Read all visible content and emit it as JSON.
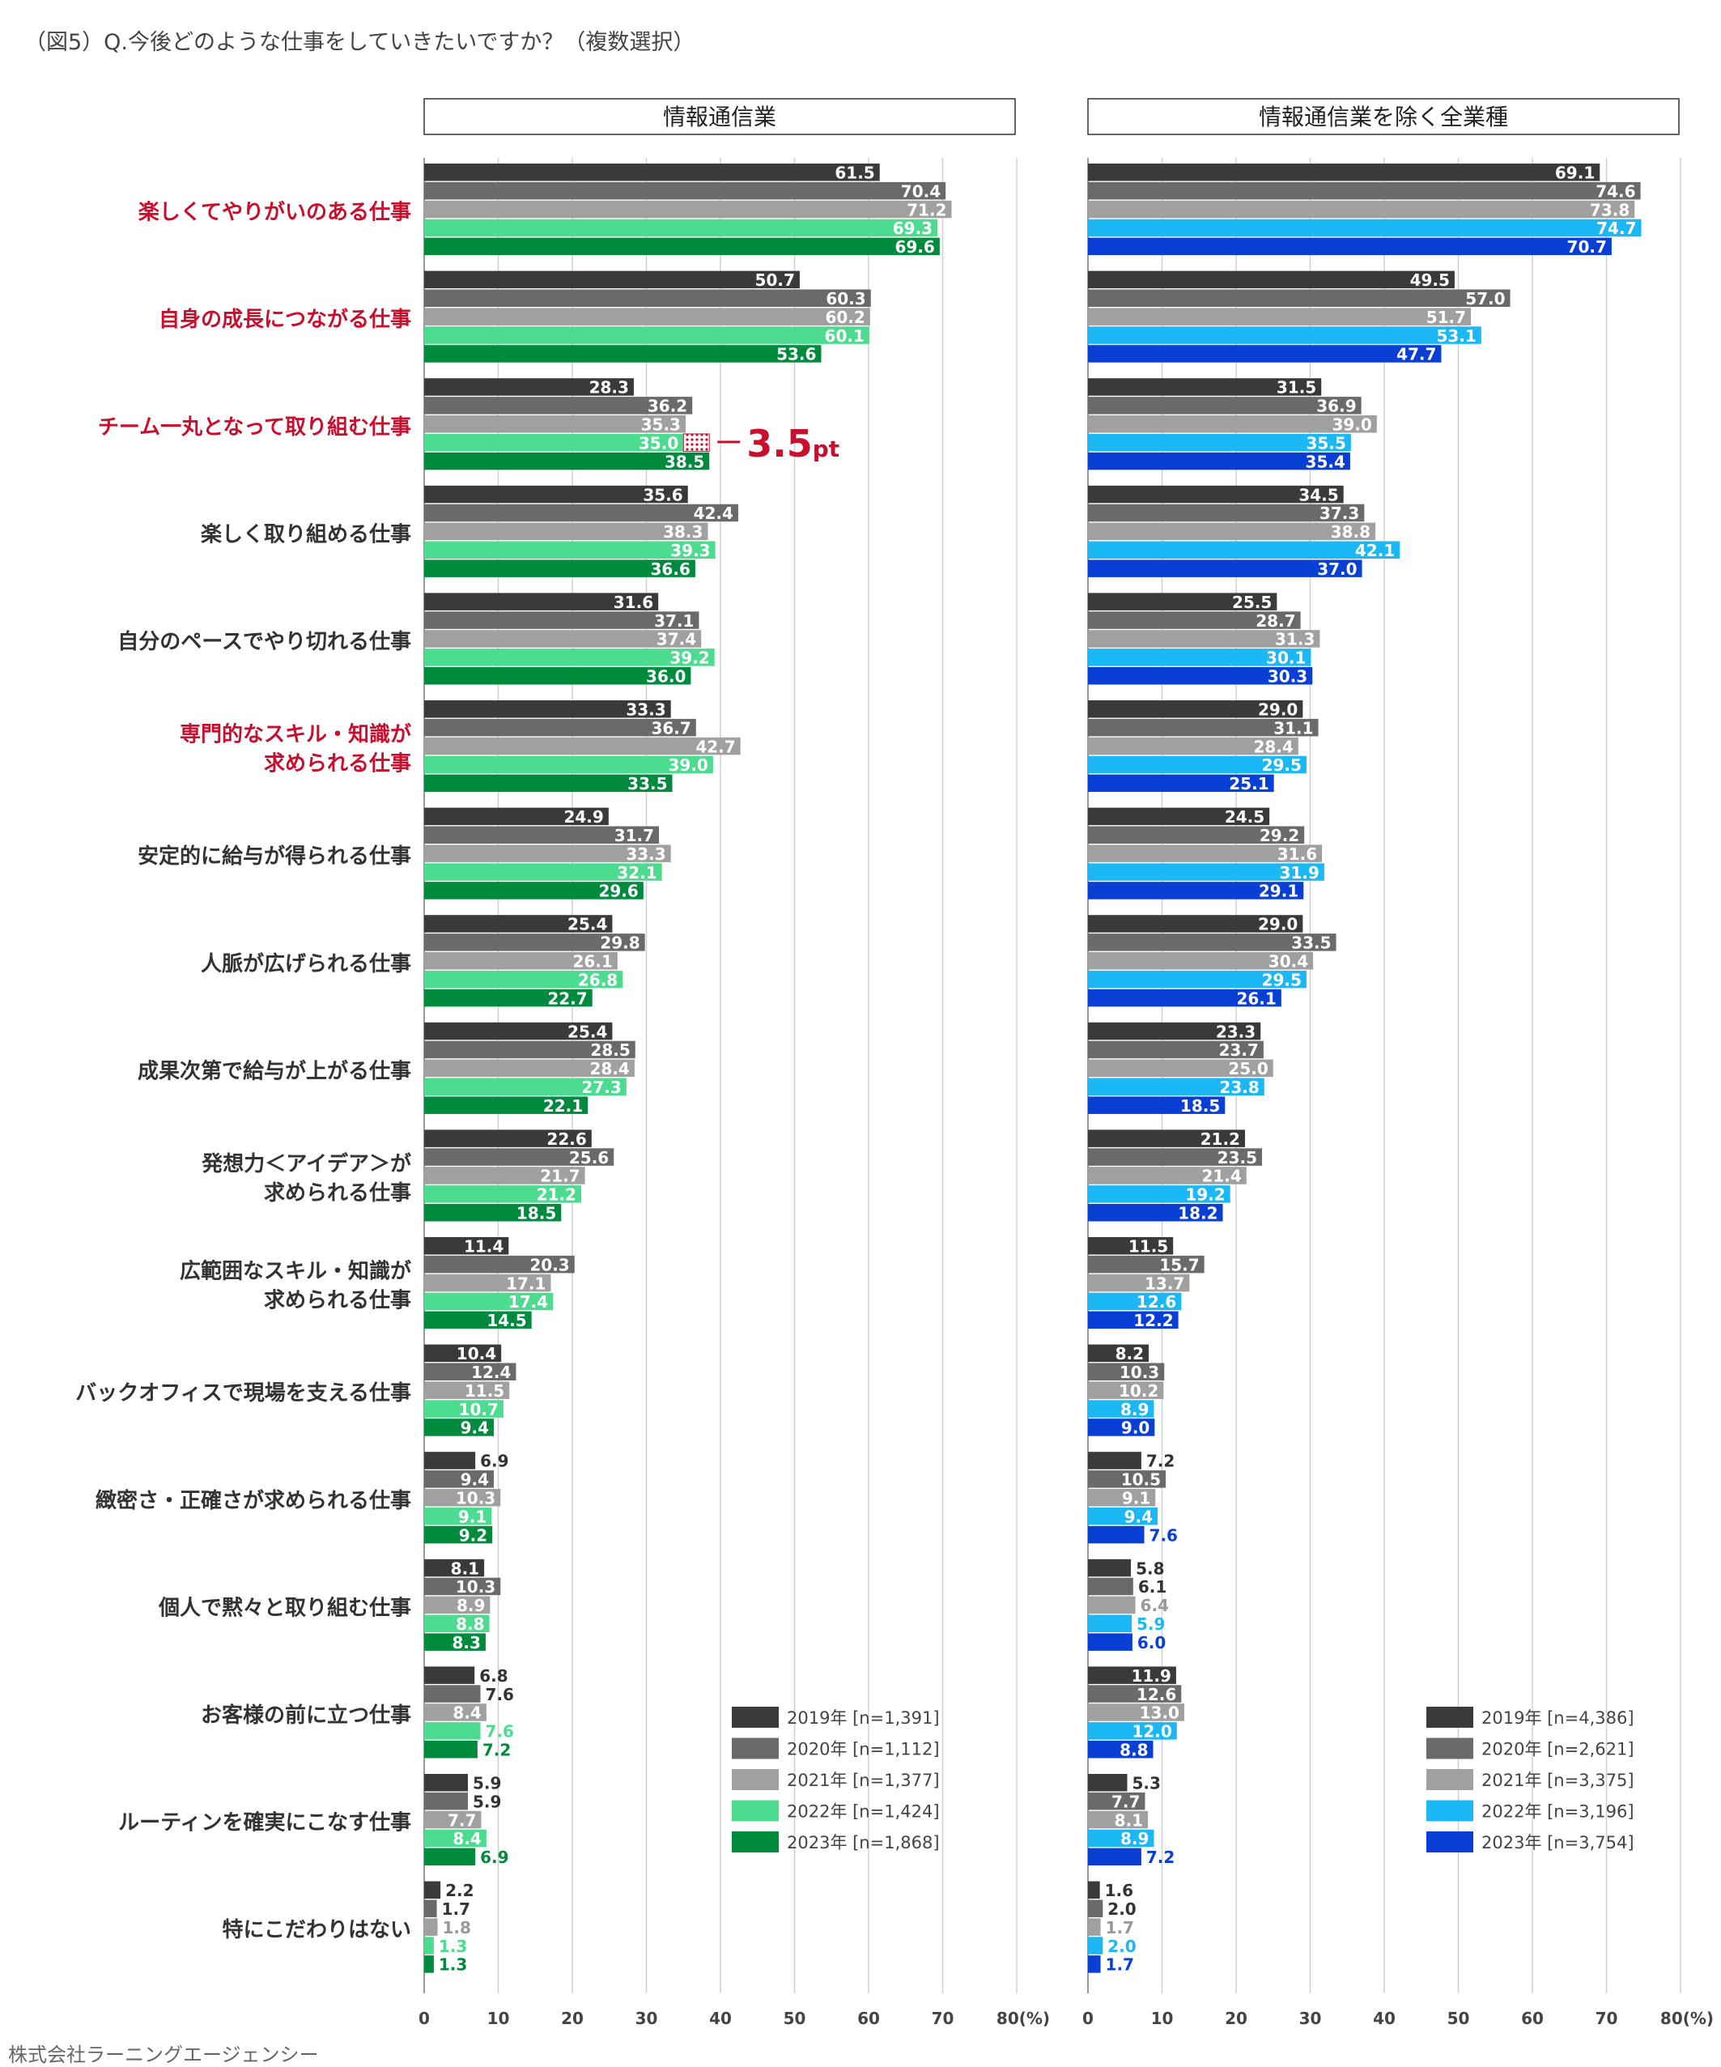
{
  "title": "（図5）Q.今後どのような仕事をしていきたいですか？（複数選択）",
  "footer": "株式会社ラーニングエージェンシー",
  "axis_unit": "80(%)",
  "highlight_note": "3.5pt",
  "colors": {
    "y2019": "#3a3a3a",
    "y2020": "#6a6a6a",
    "y2021": "#a0a0a0",
    "left2022": "#4ddb8f",
    "left2023": "#008a3e",
    "right2022": "#1cb8f5",
    "right2023": "#0a3fd6",
    "highlight_text": "#c8102e",
    "normal_text": "#333333"
  },
  "chart_data": [
    {
      "type": "bar",
      "orientation": "horizontal",
      "title": "情報通信業",
      "xlim": [
        0,
        80
      ],
      "xticks": [
        0,
        10,
        20,
        30,
        40,
        50,
        60,
        70
      ],
      "categories": [
        "楽しくてやりがいのある仕事",
        "自身の成長につながる仕事",
        "チーム一丸となって取り組む仕事",
        "楽しく取り組める仕事",
        "自分のペースでやり切れる仕事",
        "専門的なスキル・知識が\n求められる仕事",
        "安定的に給与が得られる仕事",
        "人脈が広げられる仕事",
        "成果次第で給与が上がる仕事",
        "発想力＜アイデア＞が\n求められる仕事",
        "広範囲なスキル・知識が\n求められる仕事",
        "バックオフィスで現場を支える仕事",
        "緻密さ・正確さが求められる仕事",
        "個人で黙々と取り組む仕事",
        "お客様の前に立つ仕事",
        "ルーティンを確実にこなす仕事",
        "特にこだわりはない"
      ],
      "highlighted_categories": [
        0,
        1,
        2,
        5
      ],
      "series": [
        {
          "name": "2019年 [n=1,391]",
          "values": [
            61.5,
            50.7,
            28.3,
            35.6,
            31.6,
            33.3,
            24.9,
            25.4,
            25.4,
            22.6,
            11.4,
            10.4,
            6.9,
            8.1,
            6.8,
            5.9,
            2.2
          ]
        },
        {
          "name": "2020年 [n=1,112]",
          "values": [
            70.4,
            60.3,
            36.2,
            42.4,
            37.1,
            36.7,
            31.7,
            29.8,
            28.5,
            25.6,
            20.3,
            12.4,
            9.4,
            10.3,
            7.6,
            5.9,
            1.7
          ]
        },
        {
          "name": "2021年 [n=1,377]",
          "values": [
            71.2,
            60.2,
            35.3,
            38.3,
            37.4,
            42.7,
            33.3,
            26.1,
            28.4,
            21.7,
            17.1,
            11.5,
            10.3,
            8.9,
            8.4,
            7.7,
            1.8
          ]
        },
        {
          "name": "2022年 [n=1,424]",
          "values": [
            69.3,
            60.1,
            35.0,
            39.3,
            39.2,
            39.0,
            32.1,
            26.8,
            27.3,
            21.2,
            17.4,
            10.7,
            9.1,
            8.8,
            7.6,
            8.4,
            1.3
          ]
        },
        {
          "name": "2023年 [n=1,868]",
          "values": [
            69.6,
            53.6,
            38.5,
            36.6,
            36.0,
            33.5,
            29.6,
            22.7,
            22.1,
            18.5,
            14.5,
            9.4,
            9.2,
            8.3,
            7.2,
            6.9,
            1.3
          ]
        }
      ],
      "legend": "bottom-right",
      "grid": true
    },
    {
      "type": "bar",
      "orientation": "horizontal",
      "title": "情報通信業を除く全業種",
      "xlim": [
        0,
        80
      ],
      "xticks": [
        0,
        10,
        20,
        30,
        40,
        50,
        60,
        70
      ],
      "series": [
        {
          "name": "2019年 [n=4,386]",
          "values": [
            69.1,
            49.5,
            31.5,
            34.5,
            25.5,
            29.0,
            24.5,
            29.0,
            23.3,
            21.2,
            11.5,
            8.2,
            7.2,
            5.8,
            11.9,
            5.3,
            1.6
          ]
        },
        {
          "name": "2020年 [n=2,621]",
          "values": [
            74.6,
            57.0,
            36.9,
            37.3,
            28.7,
            31.1,
            29.2,
            33.5,
            23.7,
            23.5,
            15.7,
            10.3,
            10.5,
            6.1,
            12.6,
            7.7,
            2.0
          ]
        },
        {
          "name": "2021年 [n=3,375]",
          "values": [
            73.8,
            51.7,
            39.0,
            38.8,
            31.3,
            28.4,
            31.6,
            30.4,
            25.0,
            21.4,
            13.7,
            10.2,
            9.1,
            6.4,
            13.0,
            8.1,
            1.7
          ]
        },
        {
          "name": "2022年 [n=3,196]",
          "values": [
            74.7,
            53.1,
            35.5,
            42.1,
            30.1,
            29.5,
            31.9,
            29.5,
            23.8,
            19.2,
            12.6,
            8.9,
            9.4,
            5.9,
            12.0,
            8.9,
            2.0
          ]
        },
        {
          "name": "2023年 [n=3,754]",
          "values": [
            70.7,
            47.7,
            35.4,
            37.0,
            30.3,
            25.1,
            29.1,
            26.1,
            18.5,
            18.2,
            12.2,
            9.0,
            7.6,
            6.0,
            8.8,
            7.2,
            1.7
          ]
        }
      ],
      "legend": "bottom-right",
      "grid": true
    }
  ]
}
